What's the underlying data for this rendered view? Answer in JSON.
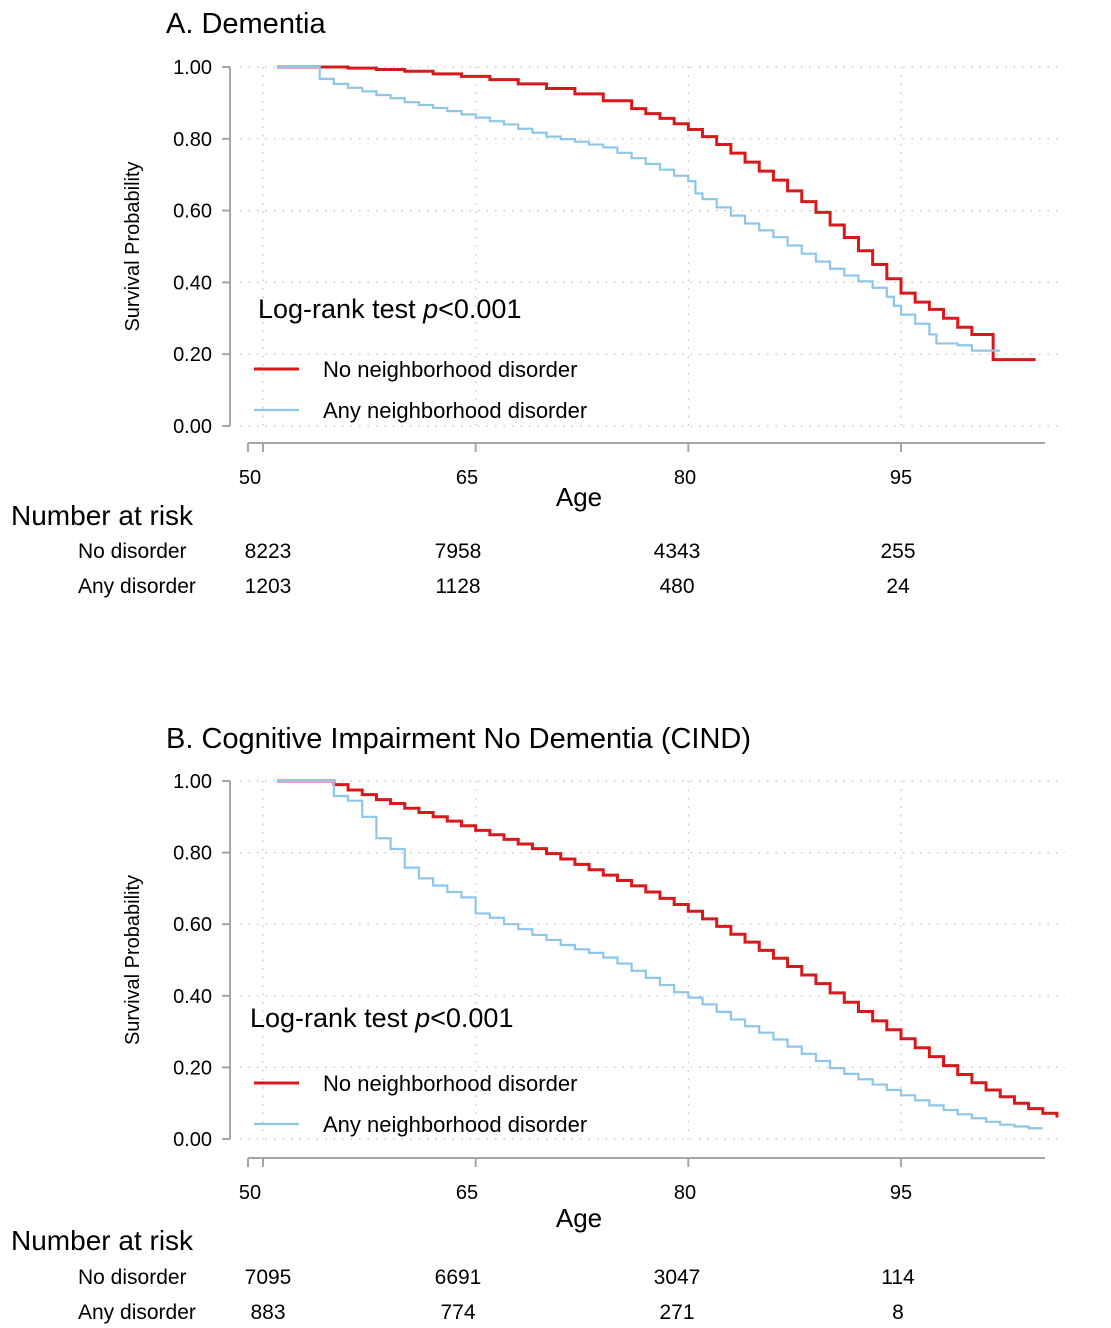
{
  "colors": {
    "no_disorder": "#d7191c",
    "any_disorder": "#8ec6ea",
    "axis": "#a6a6a6",
    "grid": "#bfbfbf"
  },
  "chart_data": [
    {
      "type": "line",
      "title": "A. Dementia",
      "xlabel": "Age",
      "ylabel": "Survival Probability",
      "xlim": [
        50,
        105
      ],
      "ylim": [
        0,
        1
      ],
      "x_ticks": [
        "50",
        "65",
        "80",
        "95"
      ],
      "y_ticks": [
        "0.00",
        "0.20",
        "0.40",
        "0.60",
        "0.80",
        "1.00"
      ],
      "grid": true,
      "annotation": {
        "text": "Log-rank test ",
        "italic": "p",
        "after": "<0.001"
      },
      "legend": {
        "placement": "bottom-left"
      },
      "series": [
        {
          "name": "No neighborhood disorder",
          "color_key": "no_disorder",
          "step": true,
          "points": [
            [
              51,
              1.0
            ],
            [
              54,
              1.0
            ],
            [
              56,
              0.997
            ],
            [
              58,
              0.993
            ],
            [
              60,
              0.988
            ],
            [
              62,
              0.981
            ],
            [
              64,
              0.974
            ],
            [
              66,
              0.965
            ],
            [
              68,
              0.953
            ],
            [
              70,
              0.94
            ],
            [
              72,
              0.925
            ],
            [
              74,
              0.906
            ],
            [
              76,
              0.884
            ],
            [
              77,
              0.87
            ],
            [
              78,
              0.857
            ],
            [
              79,
              0.842
            ],
            [
              80,
              0.826
            ],
            [
              81,
              0.806
            ],
            [
              82,
              0.784
            ],
            [
              83,
              0.76
            ],
            [
              84,
              0.735
            ],
            [
              85,
              0.71
            ],
            [
              86,
              0.685
            ],
            [
              87,
              0.655
            ],
            [
              88,
              0.625
            ],
            [
              89,
              0.595
            ],
            [
              90,
              0.56
            ],
            [
              91,
              0.525
            ],
            [
              92,
              0.488
            ],
            [
              93,
              0.45
            ],
            [
              94,
              0.41
            ],
            [
              95,
              0.37
            ],
            [
              96,
              0.345
            ],
            [
              97,
              0.325
            ],
            [
              98,
              0.3
            ],
            [
              99,
              0.275
            ],
            [
              100,
              0.255
            ],
            [
              101.5,
              0.185
            ],
            [
              104.5,
              0.185
            ]
          ]
        },
        {
          "name": "Any neighborhood disorder",
          "color_key": "any_disorder",
          "step": true,
          "points": [
            [
              51,
              1.0
            ],
            [
              54,
              1.0
            ],
            [
              54,
              0.967
            ],
            [
              55,
              0.953
            ],
            [
              56,
              0.942
            ],
            [
              57,
              0.932
            ],
            [
              58,
              0.922
            ],
            [
              59,
              0.913
            ],
            [
              60,
              0.902
            ],
            [
              61,
              0.894
            ],
            [
              62,
              0.886
            ],
            [
              63,
              0.877
            ],
            [
              64,
              0.868
            ],
            [
              65,
              0.859
            ],
            [
              66,
              0.849
            ],
            [
              67,
              0.84
            ],
            [
              68,
              0.828
            ],
            [
              69,
              0.817
            ],
            [
              70,
              0.806
            ],
            [
              71,
              0.799
            ],
            [
              72,
              0.792
            ],
            [
              73,
              0.784
            ],
            [
              74,
              0.776
            ],
            [
              75,
              0.761
            ],
            [
              76,
              0.746
            ],
            [
              77,
              0.73
            ],
            [
              78,
              0.714
            ],
            [
              79,
              0.697
            ],
            [
              80,
              0.682
            ],
            [
              80.5,
              0.648
            ],
            [
              81,
              0.632
            ],
            [
              82,
              0.609
            ],
            [
              83,
              0.586
            ],
            [
              84,
              0.564
            ],
            [
              85,
              0.545
            ],
            [
              86,
              0.526
            ],
            [
              87,
              0.503
            ],
            [
              88,
              0.48
            ],
            [
              89,
              0.458
            ],
            [
              90,
              0.438
            ],
            [
              91,
              0.419
            ],
            [
              92,
              0.403
            ],
            [
              93,
              0.385
            ],
            [
              94,
              0.36
            ],
            [
              94.5,
              0.335
            ],
            [
              95,
              0.31
            ],
            [
              96,
              0.285
            ],
            [
              97,
              0.255
            ],
            [
              97.5,
              0.23
            ],
            [
              99,
              0.225
            ],
            [
              100,
              0.21
            ],
            [
              102,
              0.21
            ]
          ]
        }
      ],
      "risk_table": {
        "heading": "Number at risk",
        "rows": [
          {
            "label": "No disorder",
            "values": [
              "8223",
              "7958",
              "4343",
              "255"
            ]
          },
          {
            "label": "Any disorder",
            "values": [
              "1203",
              "1128",
              "480",
              "24"
            ]
          }
        ]
      }
    },
    {
      "type": "line",
      "title": "B. Cognitive Impairment No Dementia (CIND)",
      "xlabel": "Age",
      "ylabel": "Survival Probability",
      "xlim": [
        50,
        105
      ],
      "ylim": [
        0,
        1
      ],
      "x_ticks": [
        "50",
        "65",
        "80",
        "95"
      ],
      "y_ticks": [
        "0.00",
        "0.20",
        "0.40",
        "0.60",
        "0.80",
        "1.00"
      ],
      "grid": true,
      "annotation": {
        "text": "Log-rank test ",
        "italic": "p",
        "after": "<0.001"
      },
      "legend": {
        "placement": "bottom-left"
      },
      "series": [
        {
          "name": "No neighborhood disorder",
          "color_key": "no_disorder",
          "step": true,
          "points": [
            [
              51,
              1.0
            ],
            [
              54,
              1.0
            ],
            [
              55,
              0.99
            ],
            [
              56,
              0.975
            ],
            [
              57,
              0.962
            ],
            [
              58,
              0.948
            ],
            [
              59,
              0.937
            ],
            [
              60,
              0.924
            ],
            [
              61,
              0.912
            ],
            [
              62,
              0.9
            ],
            [
              63,
              0.888
            ],
            [
              64,
              0.875
            ],
            [
              65,
              0.862
            ],
            [
              66,
              0.85
            ],
            [
              67,
              0.837
            ],
            [
              68,
              0.824
            ],
            [
              69,
              0.811
            ],
            [
              70,
              0.797
            ],
            [
              71,
              0.782
            ],
            [
              72,
              0.767
            ],
            [
              73,
              0.752
            ],
            [
              74,
              0.737
            ],
            [
              75,
              0.722
            ],
            [
              76,
              0.707
            ],
            [
              77,
              0.69
            ],
            [
              78,
              0.672
            ],
            [
              79,
              0.655
            ],
            [
              80,
              0.636
            ],
            [
              81,
              0.615
            ],
            [
              82,
              0.594
            ],
            [
              83,
              0.572
            ],
            [
              84,
              0.55
            ],
            [
              85,
              0.527
            ],
            [
              86,
              0.505
            ],
            [
              87,
              0.482
            ],
            [
              88,
              0.458
            ],
            [
              89,
              0.434
            ],
            [
              90,
              0.408
            ],
            [
              91,
              0.382
            ],
            [
              92,
              0.356
            ],
            [
              93,
              0.33
            ],
            [
              94,
              0.305
            ],
            [
              95,
              0.28
            ],
            [
              96,
              0.255
            ],
            [
              97,
              0.23
            ],
            [
              98,
              0.205
            ],
            [
              99,
              0.18
            ],
            [
              100,
              0.157
            ],
            [
              101,
              0.137
            ],
            [
              102,
              0.118
            ],
            [
              103,
              0.1
            ],
            [
              104,
              0.085
            ],
            [
              105,
              0.072
            ],
            [
              106,
              0.06
            ],
            [
              102,
              0.06
            ]
          ]
        },
        {
          "name": "Any neighborhood disorder",
          "color_key": "any_disorder",
          "step": true,
          "points": [
            [
              51,
              1.0
            ],
            [
              54,
              1.0
            ],
            [
              55,
              0.958
            ],
            [
              56,
              0.945
            ],
            [
              57,
              0.9
            ],
            [
              58,
              0.84
            ],
            [
              59,
              0.81
            ],
            [
              60,
              0.758
            ],
            [
              61,
              0.728
            ],
            [
              62,
              0.708
            ],
            [
              63,
              0.69
            ],
            [
              64,
              0.675
            ],
            [
              65,
              0.63
            ],
            [
              66,
              0.618
            ],
            [
              67,
              0.6
            ],
            [
              68,
              0.586
            ],
            [
              69,
              0.57
            ],
            [
              70,
              0.556
            ],
            [
              71,
              0.542
            ],
            [
              72,
              0.53
            ],
            [
              73,
              0.52
            ],
            [
              74,
              0.507
            ],
            [
              75,
              0.49
            ],
            [
              76,
              0.47
            ],
            [
              77,
              0.45
            ],
            [
              78,
              0.43
            ],
            [
              79,
              0.41
            ],
            [
              80,
              0.395
            ],
            [
              81,
              0.376
            ],
            [
              82,
              0.355
            ],
            [
              83,
              0.334
            ],
            [
              84,
              0.315
            ],
            [
              85,
              0.297
            ],
            [
              86,
              0.278
            ],
            [
              87,
              0.258
            ],
            [
              88,
              0.238
            ],
            [
              89,
              0.218
            ],
            [
              90,
              0.198
            ],
            [
              91,
              0.182
            ],
            [
              92,
              0.167
            ],
            [
              93,
              0.152
            ],
            [
              94,
              0.137
            ],
            [
              95,
              0.122
            ],
            [
              96,
              0.108
            ],
            [
              97,
              0.094
            ],
            [
              98,
              0.081
            ],
            [
              99,
              0.069
            ],
            [
              100,
              0.058
            ],
            [
              101,
              0.048
            ],
            [
              102,
              0.04
            ],
            [
              103,
              0.035
            ],
            [
              104,
              0.03
            ],
            [
              105,
              0.03
            ]
          ]
        }
      ],
      "risk_table": {
        "heading": "Number at risk",
        "rows": [
          {
            "label": "No disorder",
            "values": [
              "7095",
              "6691",
              "3047",
              "114"
            ]
          },
          {
            "label": "Any disorder",
            "values": [
              "883",
              "774",
              "271",
              "8"
            ]
          }
        ]
      }
    }
  ]
}
